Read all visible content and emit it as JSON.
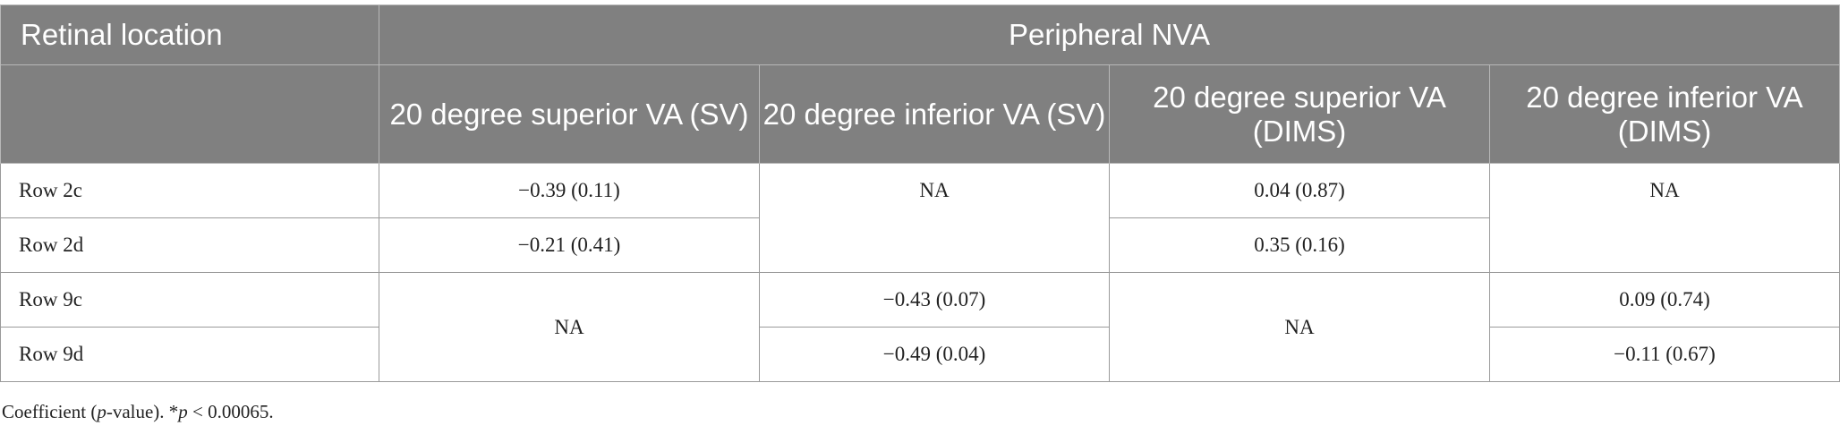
{
  "table": {
    "header": {
      "row0": [
        "Retinal location",
        "Peripheral NVA"
      ],
      "row1": [
        "20 degree superior VA (SV)",
        "20 degree inferior VA (SV)",
        "20 degree superior VA (DIMS)",
        "20 degree inferior VA (DIMS)"
      ]
    },
    "rows": [
      [
        "Row 2c",
        "−0.39 (0.11)",
        "NA",
        "0.04 (0.87)",
        "NA"
      ],
      [
        "Row 2d",
        "−0.21 (0.41)",
        "0.35 (0.16)"
      ],
      [
        "Row 9c",
        "NA",
        "−0.43 (0.07)",
        "NA",
        "0.09 (0.74)"
      ],
      [
        "Row 9d",
        "−0.49 (0.04)",
        "−0.11 (0.67)"
      ]
    ]
  },
  "footnote": [
    "Coefficient (",
    "p",
    "-value). *",
    "p",
    " < 0.00065."
  ]
}
